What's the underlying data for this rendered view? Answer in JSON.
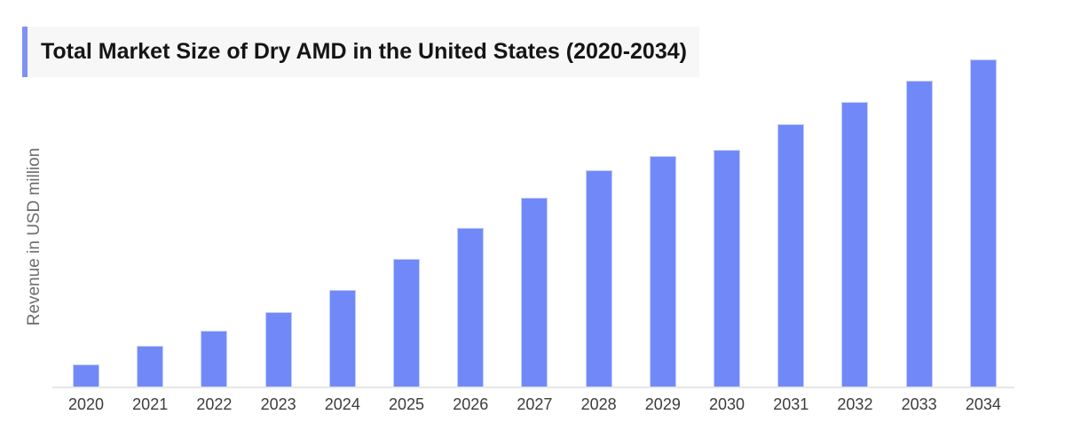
{
  "colors": {
    "bar_fill": "#7189f8",
    "title_accent": "#7d92f3",
    "title_background": "#f7f7f7",
    "title_text": "#151515",
    "axis_line": "#e7e7e7",
    "tick_label_text": "#3c3c3c",
    "y_axis_label_text": "#6e6e6e"
  },
  "chart_data": {
    "type": "bar",
    "title": "Total Market Size of Dry AMD in the United States (2020-2034)",
    "xlabel": "",
    "ylabel": "Revenue in USD million",
    "categories": [
      "2020",
      "2021",
      "2022",
      "2023",
      "2024",
      "2025",
      "2026",
      "2027",
      "2028",
      "2029",
      "2030",
      "2031",
      "2032",
      "2033",
      "2034"
    ],
    "values": [
      7.0,
      12.7,
      17.3,
      23.0,
      29.7,
      39.2,
      48.6,
      57.8,
      66.2,
      70.5,
      72.4,
      80.3,
      87.0,
      93.5,
      100.0
    ],
    "value_scale_note": "y-axis shows no tick labels or gridlines; values are relative bar heights estimated from pixels, normalized so 2034 = 100",
    "ylim": [
      0,
      100
    ],
    "grid": false,
    "legend": false,
    "bar_color": "#7189f8"
  }
}
